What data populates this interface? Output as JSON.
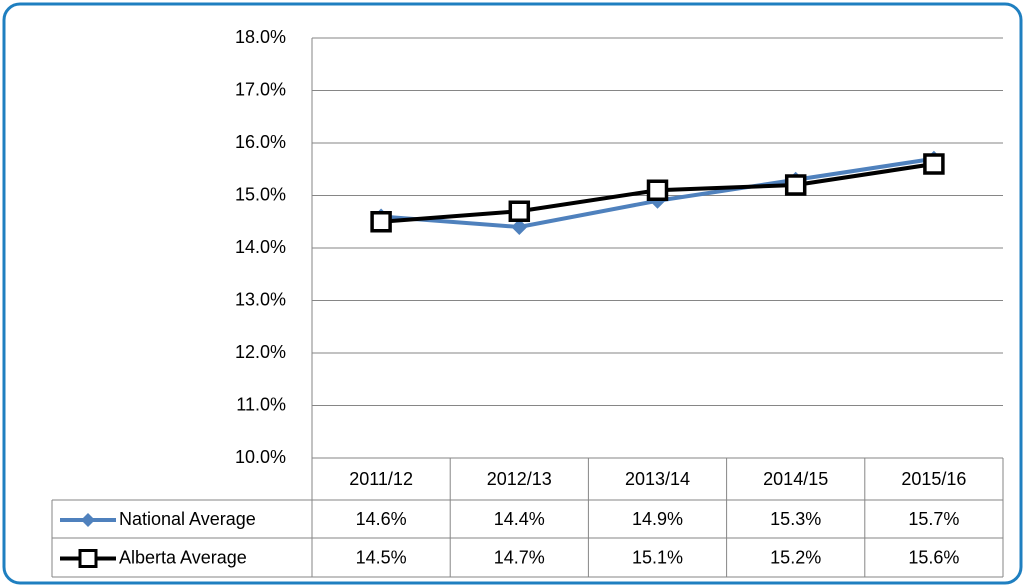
{
  "chart_data": {
    "type": "line",
    "categories": [
      "2011/12",
      "2012/13",
      "2013/14",
      "2014/15",
      "2015/16"
    ],
    "series": [
      {
        "name": "National Average",
        "color": "#4f81bd",
        "marker": "diamond",
        "values": [
          14.6,
          14.4,
          14.9,
          15.3,
          15.7
        ],
        "value_labels": [
          "14.6%",
          "14.4%",
          "14.9%",
          "15.3%",
          "15.7%"
        ]
      },
      {
        "name": "Alberta Average",
        "color": "#000000",
        "marker": "square",
        "values": [
          14.5,
          14.7,
          15.1,
          15.2,
          15.6
        ],
        "value_labels": [
          "14.5%",
          "14.7%",
          "15.1%",
          "15.2%",
          "15.6%"
        ]
      }
    ],
    "ylim": [
      10,
      18
    ],
    "yticks": [
      {
        "value": 10,
        "label": "10.0%"
      },
      {
        "value": 11,
        "label": "11.0%"
      },
      {
        "value": 12,
        "label": "12.0%"
      },
      {
        "value": 13,
        "label": "13.0%"
      },
      {
        "value": 14,
        "label": "14.0%"
      },
      {
        "value": 15,
        "label": "15.0%"
      },
      {
        "value": 16,
        "label": "16.0%"
      },
      {
        "value": 17,
        "label": "17.0%"
      },
      {
        "value": 18,
        "label": "18.0%"
      }
    ],
    "grid": true
  }
}
